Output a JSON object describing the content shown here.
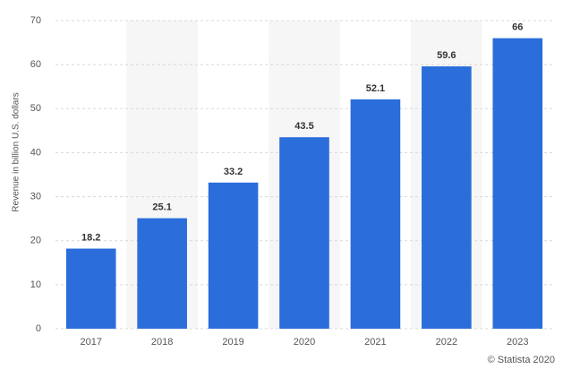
{
  "chart_data": {
    "type": "bar",
    "y_axis_label": "Revenue in billion U.S. dollars",
    "credit": "© Statista 2020",
    "categories": [
      "2017",
      "2018",
      "2019",
      "2020",
      "2021",
      "2022",
      "2023"
    ],
    "values": [
      18.2,
      25.1,
      33.2,
      43.5,
      52.1,
      59.6,
      66
    ],
    "color": "#2a6ddb",
    "ylim": [
      0,
      70
    ],
    "yticks": [
      0,
      10,
      20,
      30,
      40,
      50,
      60,
      70
    ],
    "grid": true
  }
}
